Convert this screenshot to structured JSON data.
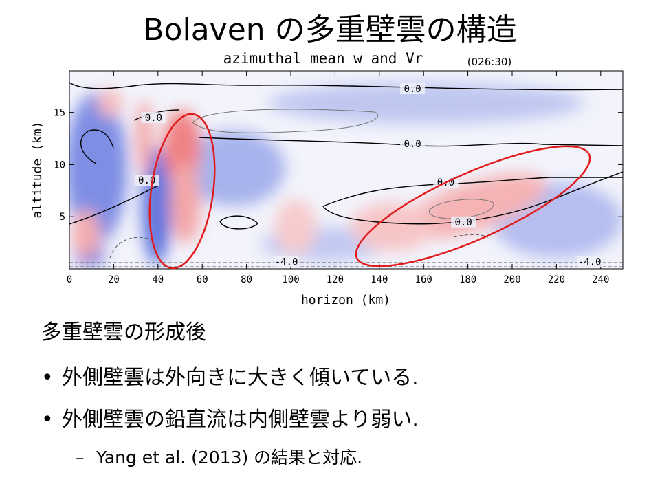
{
  "slide": {
    "title": "Bolaven の多重壁雲の構造",
    "bullets": [
      "多重壁雲の形成後",
      "外側壁雲は外向きに大きく傾いている.",
      "外側壁雲の鉛直流は内側壁雲より弱い.",
      "Yang et al. (2013) の結果と対応."
    ],
    "bullet_marks": [
      "•",
      "•",
      "–"
    ]
  },
  "chart_data": {
    "type": "heatmap",
    "title": "azimuthal mean w and Vr",
    "time_label": "(026:30)",
    "xlabel": "horizon (km)",
    "ylabel": "altitude (km)",
    "xlim": [
      0,
      250
    ],
    "ylim": [
      0,
      19
    ],
    "x_ticks": [
      0,
      20,
      40,
      60,
      80,
      100,
      120,
      140,
      160,
      180,
      200,
      220,
      240
    ],
    "y_ticks": [
      5,
      10,
      15
    ],
    "contour_labels": [
      {
        "text": "0.0",
        "x": 155,
        "y": 17.3
      },
      {
        "text": "0.0",
        "x": 38,
        "y": 14.5
      },
      {
        "text": "0.0",
        "x": 155,
        "y": 12.0
      },
      {
        "text": "0.0",
        "x": 35,
        "y": 8.5
      },
      {
        "text": "0.0",
        "x": 170,
        "y": 8.3
      },
      {
        "text": "0.0",
        "x": 178,
        "y": 4.5
      },
      {
        "text": "-4.0",
        "x": 98,
        "y": 0.7
      },
      {
        "text": "-4.0",
        "x": 235,
        "y": 0.7
      }
    ],
    "annotations": [
      {
        "label": "inner eyewall ellipse",
        "color": "#e11b1b",
        "center": [
          48,
          7.5
        ]
      },
      {
        "label": "outer eyewall ellipse",
        "color": "#e11b1b",
        "center": [
          180,
          6.5
        ]
      }
    ],
    "colors": {
      "positive": "#f08080",
      "negative": "#6a7de0",
      "contour": "#000000",
      "ellipse": "#e11b1b"
    }
  }
}
